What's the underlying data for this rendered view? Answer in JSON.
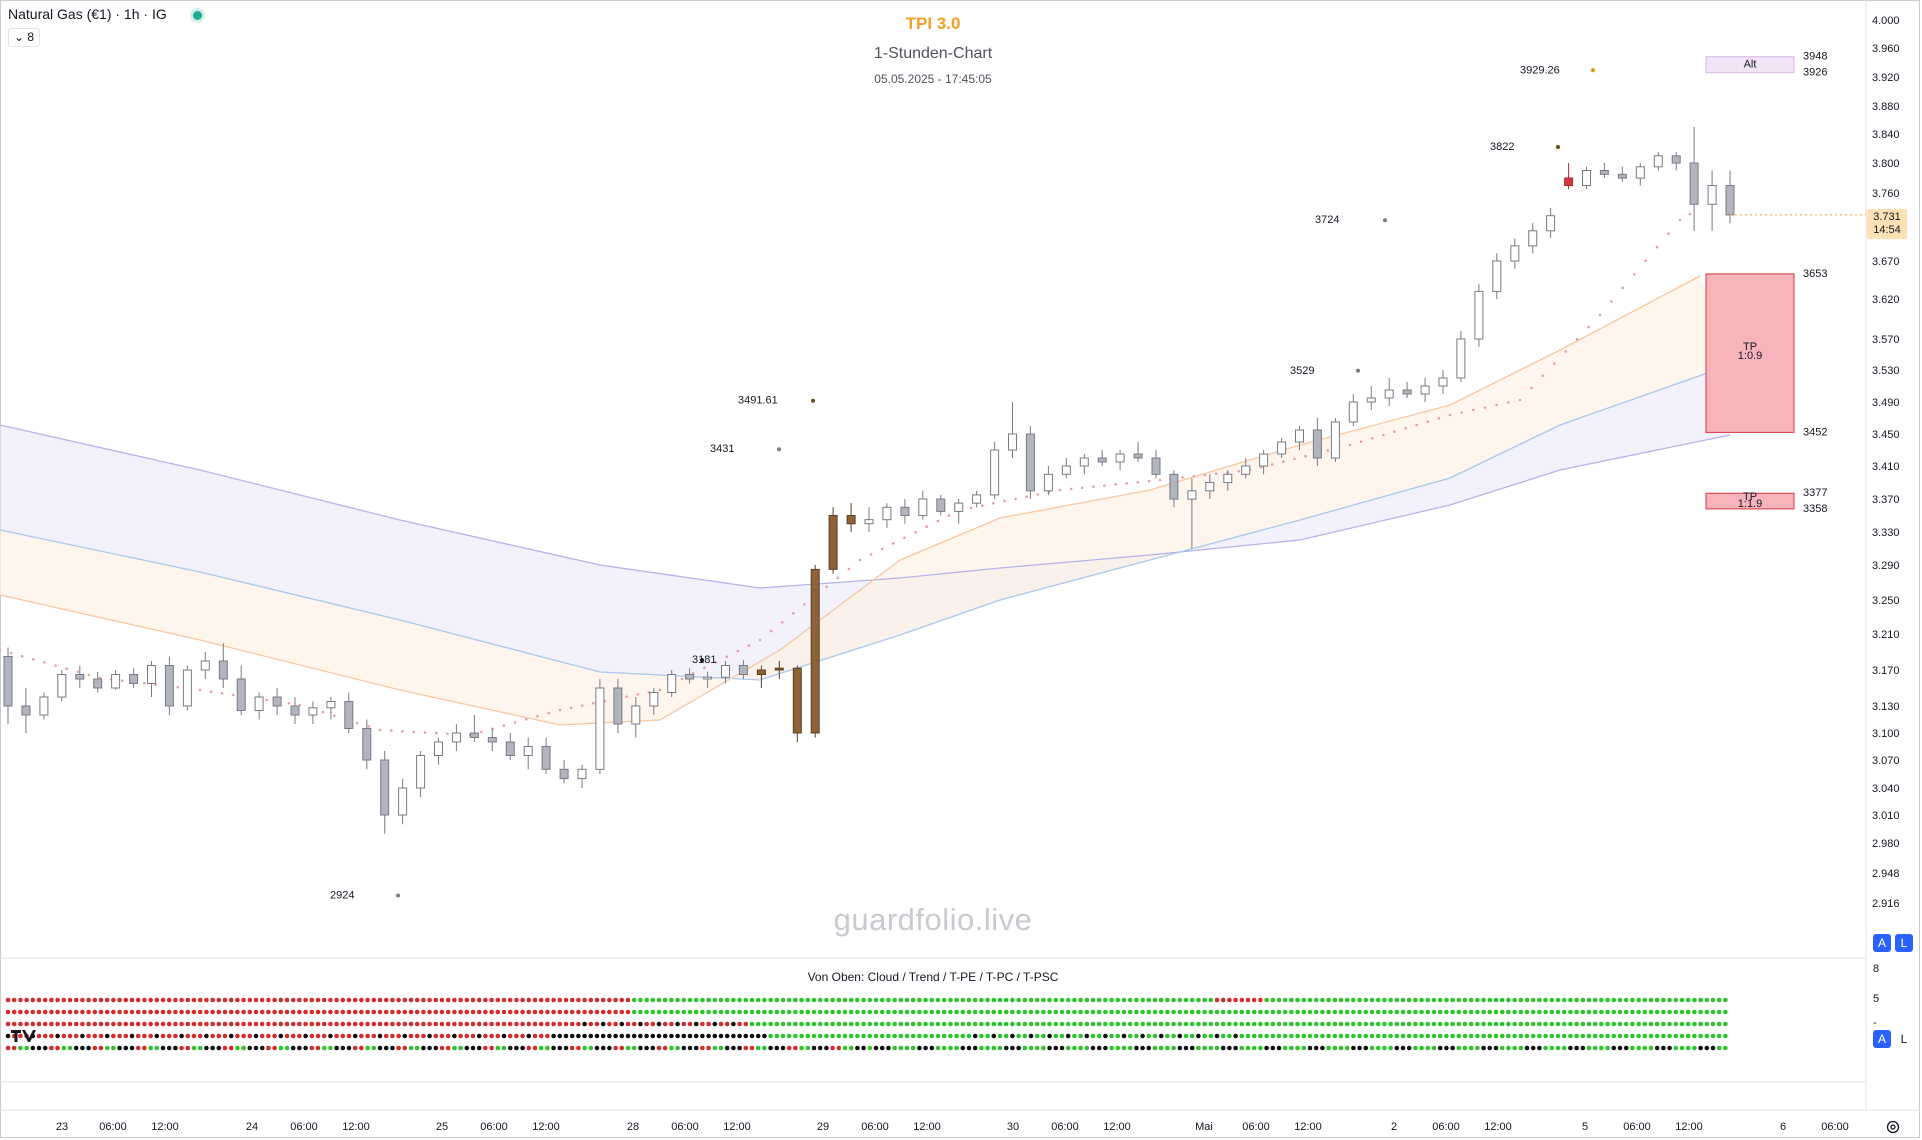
{
  "header": {
    "symbol": "Natural Gas (€1) · 1h · IG",
    "indicator_count": "8"
  },
  "chart_title": {
    "name": "TPI 3.0",
    "subtitle": "1-Stunden-Chart",
    "timestamp": "05.05.2025 - 17:45:05"
  },
  "watermark": "guardfolio.live",
  "sub_panel_caption": "Von Oben: Cloud / Trend / T-PE / T-PC / T-PSC",
  "sub_panel_scale": [
    "8",
    "5",
    "-"
  ],
  "price_label": {
    "price": "3.731",
    "countdown": "14:54"
  },
  "scale_buttons": {
    "auto": "A",
    "log": "L"
  },
  "colors": {
    "ema_fast": "#f7c7a0",
    "ema_mid": "#a9c8ec",
    "ema_slow": "#b6b3e6",
    "trail_dots": "#e6a0a5",
    "zone_red": "#f7b4bb",
    "dot_red": "#d42b2b",
    "dot_green": "#2cc52c",
    "dot_black": "#111111",
    "accent_orange": "#f4a024"
  },
  "chart_data": {
    "type": "candlestick",
    "title": "TPI 3.0",
    "subtitle": "1-Stunden-Chart",
    "y_axis": {
      "ticks": [
        "4.000",
        "3.960",
        "3.920",
        "3.880",
        "3.840",
        "3.800",
        "3.760",
        "3.670",
        "3.620",
        "3.570",
        "3.530",
        "3.490",
        "3.450",
        "3.410",
        "3.370",
        "3.330",
        "3.290",
        "3.250",
        "3.210",
        "3.170",
        "3.130",
        "3.100",
        "3.070",
        "3.040",
        "3.010",
        "2.980",
        "2.948",
        "2.916"
      ]
    },
    "x_axis": {
      "ticks": [
        "23",
        "06:00",
        "12:00",
        "24",
        "06:00",
        "12:00",
        "25",
        "06:00",
        "12:00",
        "28",
        "06:00",
        "12:00",
        "29",
        "06:00",
        "12:00",
        "30",
        "06:00",
        "12:00",
        "Mai",
        "06:00",
        "12:00",
        "2",
        "06:00",
        "12:00",
        "5",
        "06:00",
        "12:00",
        "6",
        "06:00"
      ]
    },
    "candles": [
      [
        3185,
        3195,
        3110,
        3130
      ],
      [
        3130,
        3150,
        3100,
        3120
      ],
      [
        3120,
        3145,
        3115,
        3140
      ],
      [
        3140,
        3170,
        3135,
        3165
      ],
      [
        3165,
        3175,
        3150,
        3160
      ],
      [
        3160,
        3168,
        3145,
        3150
      ],
      [
        3150,
        3170,
        3148,
        3165
      ],
      [
        3165,
        3172,
        3150,
        3155
      ],
      [
        3155,
        3180,
        3140,
        3175
      ],
      [
        3175,
        3185,
        3120,
        3130
      ],
      [
        3130,
        3175,
        3125,
        3170
      ],
      [
        3170,
        3190,
        3160,
        3180
      ],
      [
        3180,
        3200,
        3150,
        3160
      ],
      [
        3160,
        3175,
        3120,
        3125
      ],
      [
        3125,
        3145,
        3115,
        3140
      ],
      [
        3140,
        3150,
        3120,
        3130
      ],
      [
        3130,
        3140,
        3110,
        3120
      ],
      [
        3120,
        3135,
        3110,
        3128
      ],
      [
        3128,
        3140,
        3115,
        3135
      ],
      [
        3135,
        3145,
        3100,
        3105
      ],
      [
        3105,
        3115,
        3060,
        3070
      ],
      [
        3070,
        3080,
        2990,
        3010
      ],
      [
        3010,
        3050,
        3000,
        3040
      ],
      [
        3040,
        3080,
        3030,
        3075
      ],
      [
        3075,
        3095,
        3065,
        3090
      ],
      [
        3090,
        3110,
        3080,
        3100
      ],
      [
        3100,
        3120,
        3090,
        3095
      ],
      [
        3095,
        3105,
        3080,
        3090
      ],
      [
        3090,
        3100,
        3070,
        3075
      ],
      [
        3075,
        3095,
        3060,
        3085
      ],
      [
        3085,
        3095,
        3055,
        3060
      ],
      [
        3060,
        3070,
        3045,
        3050
      ],
      [
        3050,
        3065,
        3040,
        3060
      ],
      [
        3060,
        3160,
        3055,
        3150
      ],
      [
        3150,
        3160,
        3100,
        3110
      ],
      [
        3110,
        3140,
        3095,
        3130
      ],
      [
        3130,
        3150,
        3120,
        3145
      ],
      [
        3145,
        3170,
        3140,
        3165
      ],
      [
        3165,
        3172,
        3155,
        3160
      ],
      [
        3160,
        3168,
        3150,
        3162
      ],
      [
        3162,
        3180,
        3155,
        3175
      ],
      [
        3175,
        3181,
        3160,
        3165
      ],
      [
        3165,
        3175,
        3150,
        3170
      ],
      [
        3170,
        3180,
        3160,
        3172
      ],
      [
        3172,
        3175,
        3090,
        3100
      ],
      [
        3100,
        3290,
        3095,
        3285
      ],
      [
        3285,
        3360,
        3280,
        3350
      ],
      [
        3350,
        3365,
        3330,
        3340
      ],
      [
        3340,
        3360,
        3330,
        3345
      ],
      [
        3345,
        3365,
        3335,
        3360
      ],
      [
        3360,
        3370,
        3340,
        3350
      ],
      [
        3350,
        3380,
        3345,
        3370
      ],
      [
        3370,
        3375,
        3350,
        3355
      ],
      [
        3355,
        3370,
        3340,
        3365
      ],
      [
        3365,
        3380,
        3360,
        3375
      ],
      [
        3375,
        3440,
        3370,
        3430
      ],
      [
        3430,
        3490,
        3420,
        3450
      ],
      [
        3450,
        3460,
        3370,
        3380
      ],
      [
        3380,
        3410,
        3375,
        3400
      ],
      [
        3400,
        3420,
        3395,
        3410
      ],
      [
        3410,
        3425,
        3400,
        3420
      ],
      [
        3420,
        3430,
        3410,
        3415
      ],
      [
        3415,
        3430,
        3405,
        3425
      ],
      [
        3425,
        3440,
        3415,
        3420
      ],
      [
        3420,
        3430,
        3395,
        3400
      ],
      [
        3400,
        3405,
        3360,
        3370
      ],
      [
        3370,
        3395,
        3310,
        3380
      ],
      [
        3380,
        3400,
        3370,
        3390
      ],
      [
        3390,
        3405,
        3380,
        3400
      ],
      [
        3400,
        3420,
        3395,
        3410
      ],
      [
        3410,
        3430,
        3400,
        3425
      ],
      [
        3425,
        3445,
        3420,
        3440
      ],
      [
        3440,
        3460,
        3430,
        3455
      ],
      [
        3455,
        3470,
        3410,
        3420
      ],
      [
        3420,
        3470,
        3415,
        3465
      ],
      [
        3465,
        3500,
        3460,
        3490
      ],
      [
        3490,
        3510,
        3480,
        3495
      ],
      [
        3495,
        3520,
        3485,
        3505
      ],
      [
        3505,
        3515,
        3495,
        3500
      ],
      [
        3500,
        3520,
        3490,
        3510
      ],
      [
        3510,
        3530,
        3500,
        3520
      ],
      [
        3520,
        3580,
        3515,
        3570
      ],
      [
        3570,
        3640,
        3560,
        3630
      ],
      [
        3630,
        3680,
        3620,
        3670
      ],
      [
        3670,
        3700,
        3660,
        3690
      ],
      [
        3690,
        3720,
        3680,
        3710
      ],
      [
        3710,
        3740,
        3700,
        3730
      ],
      [
        3780,
        3800,
        3765,
        3770
      ],
      [
        3770,
        3795,
        3765,
        3790
      ],
      [
        3790,
        3800,
        3780,
        3785
      ],
      [
        3785,
        3795,
        3775,
        3780
      ],
      [
        3780,
        3800,
        3770,
        3795
      ],
      [
        3795,
        3815,
        3790,
        3810
      ],
      [
        3810,
        3815,
        3790,
        3800
      ],
      [
        3800,
        3850,
        3710,
        3745
      ],
      [
        3745,
        3790,
        3710,
        3770
      ],
      [
        3770,
        3790,
        3720,
        3731
      ]
    ],
    "annotations": [
      {
        "text": "3929.26",
        "price": 3929.26,
        "color": "#e09010"
      },
      {
        "text": "3822",
        "price": 3822,
        "color": "#6b4b15"
      },
      {
        "text": "3724",
        "price": 3724,
        "color": "#787b86"
      },
      {
        "text": "3529",
        "price": 3529,
        "color": "#787b86"
      },
      {
        "text": "3491.61",
        "price": 3491.61,
        "color": "#6b4b15"
      },
      {
        "text": "3431",
        "price": 3431,
        "color": "#787b86"
      },
      {
        "text": "3181",
        "price": 3181,
        "color": "#131722"
      },
      {
        "text": "2924",
        "price": 2924,
        "color": "#787b86"
      }
    ],
    "target_levels": [
      {
        "text": "3948",
        "price": 3948
      },
      {
        "text": "3926",
        "price": 3926
      },
      {
        "text": "3653",
        "price": 3653
      },
      {
        "text": "3452",
        "price": 3452
      },
      {
        "text": "3377",
        "price": 3377
      },
      {
        "text": "3358",
        "price": 3358
      }
    ],
    "zone_labels": [
      "TP",
      "1:0.9",
      "TP",
      "1:1.9",
      "Alt"
    ],
    "last_price": 3.731,
    "sub_panel": {
      "rows": [
        "Cloud",
        "Trend",
        "T-PE",
        "T-PC",
        "T-PSC"
      ],
      "legend": "Von Oben: Cloud / Trend / T-PE / T-PC / T-PSC"
    }
  }
}
